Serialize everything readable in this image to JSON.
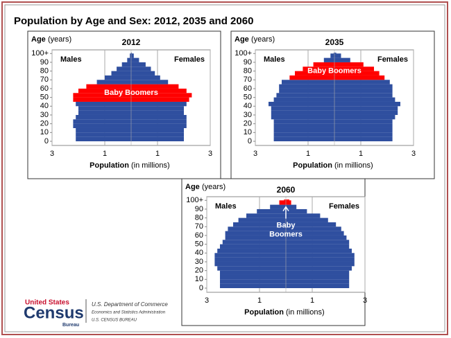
{
  "title": "Population by Age and Sex: 2012, 2035 and 2060",
  "footer": {
    "logo_top": "United States",
    "logo_main": "Census",
    "logo_bottom": "Bureau",
    "line1": "U.S. Department of Commerce",
    "line2": "Economics and Statistics Administration",
    "line3": "U.S. CENSUS BUREAU"
  },
  "chart_data": [
    {
      "type": "pyramid",
      "title": "2012",
      "y_label": "Age",
      "y_label_unit": "(years)",
      "x_label": "Population",
      "x_label_unit": "(in millions)",
      "y": [
        0,
        5,
        10,
        15,
        20,
        25,
        30,
        35,
        40,
        45,
        50,
        55,
        60,
        65,
        70,
        75,
        80,
        85,
        90,
        95,
        100
      ],
      "series": [
        {
          "name": "Males",
          "color": "#2f4f9f",
          "values": [
            2.1,
            2.1,
            2.1,
            2.2,
            2.2,
            2.1,
            2.0,
            2.0,
            2.1,
            2.2,
            2.2,
            2.0,
            1.7,
            1.3,
            1.0,
            0.75,
            0.55,
            0.35,
            0.15,
            0.05,
            0.01
          ]
        },
        {
          "name": "Females",
          "color": "#2f4f9f",
          "values": [
            2.0,
            2.0,
            2.0,
            2.1,
            2.1,
            2.1,
            2.0,
            2.0,
            2.1,
            2.2,
            2.3,
            2.1,
            1.8,
            1.4,
            1.1,
            0.9,
            0.75,
            0.55,
            0.3,
            0.1,
            0.03
          ]
        }
      ],
      "highlight": {
        "label": "Baby Boomers",
        "from": 45,
        "to": 60,
        "color": "#ff0000"
      },
      "xlim": [
        -3,
        3
      ],
      "xticks": [
        {
          "value": -3,
          "label": "3"
        },
        {
          "value": -1,
          "label": "1"
        },
        1,
        3
      ],
      "ylim": [
        0,
        101
      ],
      "yticks": [
        0,
        10,
        20,
        30,
        40,
        50,
        60,
        70,
        80,
        90,
        {
          "value": 100,
          "label": "100+"
        }
      ],
      "grid": true
    },
    {
      "type": "pyramid",
      "title": "2035",
      "y_label": "Age",
      "y_label_unit": "(years)",
      "x_label": "Population",
      "x_label_unit": "(in millions)",
      "y": [
        0,
        5,
        10,
        15,
        20,
        25,
        30,
        35,
        40,
        45,
        50,
        55,
        60,
        65,
        70,
        75,
        80,
        85,
        90,
        95,
        100
      ],
      "series": [
        {
          "name": "Males",
          "color": "#2f4f9f",
          "values": [
            2.3,
            2.3,
            2.3,
            2.3,
            2.3,
            2.4,
            2.4,
            2.4,
            2.5,
            2.3,
            2.2,
            2.1,
            2.1,
            2.0,
            1.7,
            1.5,
            1.2,
            0.8,
            0.4,
            0.15,
            0.03
          ]
        },
        {
          "name": "Females",
          "color": "#2f4f9f",
          "values": [
            2.2,
            2.2,
            2.2,
            2.2,
            2.2,
            2.3,
            2.4,
            2.4,
            2.5,
            2.3,
            2.2,
            2.2,
            2.2,
            2.1,
            1.9,
            1.7,
            1.5,
            1.1,
            0.6,
            0.25,
            0.07
          ]
        }
      ],
      "highlight": {
        "label": "Baby Boomers",
        "from": 70,
        "to": 85,
        "color": "#ff0000"
      },
      "xlim": [
        -3,
        3
      ],
      "xticks": [
        {
          "value": -3,
          "label": "3"
        },
        {
          "value": -1,
          "label": "1"
        },
        1,
        3
      ],
      "ylim": [
        0,
        101
      ],
      "yticks": [
        0,
        10,
        20,
        30,
        40,
        50,
        60,
        70,
        80,
        90,
        {
          "value": 100,
          "label": "100+"
        }
      ],
      "grid": true
    },
    {
      "type": "pyramid",
      "title": "2060",
      "y_label": "Age",
      "y_label_unit": "(years)",
      "x_label": "Population",
      "x_label_unit": "(in millions)",
      "y": [
        0,
        5,
        10,
        15,
        20,
        25,
        30,
        35,
        40,
        45,
        50,
        55,
        60,
        65,
        70,
        75,
        80,
        85,
        90,
        95,
        100
      ],
      "series": [
        {
          "name": "Males",
          "color": "#2f4f9f",
          "values": [
            2.5,
            2.5,
            2.5,
            2.5,
            2.6,
            2.7,
            2.7,
            2.7,
            2.6,
            2.5,
            2.4,
            2.3,
            2.3,
            2.2,
            2.0,
            1.8,
            1.5,
            1.1,
            0.6,
            0.25,
            0.07
          ]
        },
        {
          "name": "Females",
          "color": "#2f4f9f",
          "values": [
            2.4,
            2.4,
            2.4,
            2.4,
            2.5,
            2.6,
            2.6,
            2.6,
            2.5,
            2.4,
            2.4,
            2.3,
            2.2,
            2.1,
            1.9,
            1.6,
            1.3,
            0.8,
            0.4,
            0.2,
            0.13
          ]
        }
      ],
      "highlight": {
        "label": "Baby Boomers",
        "from": 95,
        "to": 100,
        "color": "#ff0000"
      },
      "xlim": [
        -3,
        3
      ],
      "xticks": [
        {
          "value": -3,
          "label": "3"
        },
        {
          "value": -1,
          "label": "1"
        },
        1,
        3
      ],
      "ylim": [
        0,
        101
      ],
      "yticks": [
        0,
        10,
        20,
        30,
        40,
        50,
        60,
        70,
        80,
        90,
        {
          "value": 100,
          "label": "100+"
        }
      ],
      "grid": true
    }
  ]
}
